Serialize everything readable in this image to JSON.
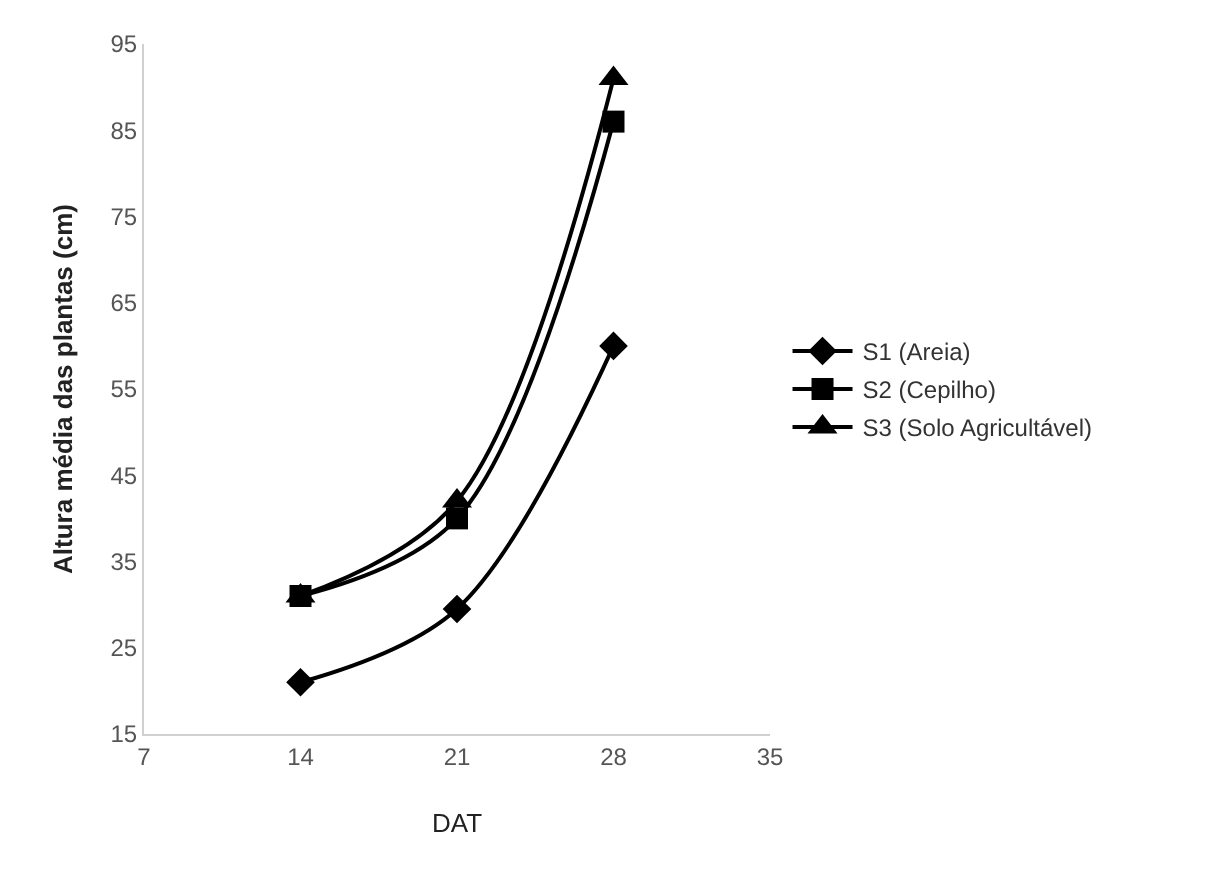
{
  "chart_data": {
    "type": "line",
    "xlabel": "DAT",
    "ylabel": "Altura média das plantas (cm)",
    "x": [
      14,
      21,
      28
    ],
    "xlim": [
      7,
      35
    ],
    "xticks": [
      7,
      14,
      21,
      28,
      35
    ],
    "ylim": [
      15,
      95
    ],
    "yticks": [
      15,
      25,
      35,
      45,
      55,
      65,
      75,
      85,
      95
    ],
    "grid": false,
    "legend": "right",
    "line_style": "solid",
    "series": [
      {
        "name": "S1 (Areia)",
        "color": "#000000",
        "marker": "diamond",
        "values": [
          21,
          29.5,
          60
        ]
      },
      {
        "name": "S2 (Cepilho)",
        "color": "#000000",
        "marker": "square",
        "values": [
          31,
          40,
          86
        ]
      },
      {
        "name": "S3 (Solo Agricultável)",
        "color": "#000000",
        "marker": "triangle",
        "values": [
          31,
          42,
          91
        ]
      }
    ]
  }
}
